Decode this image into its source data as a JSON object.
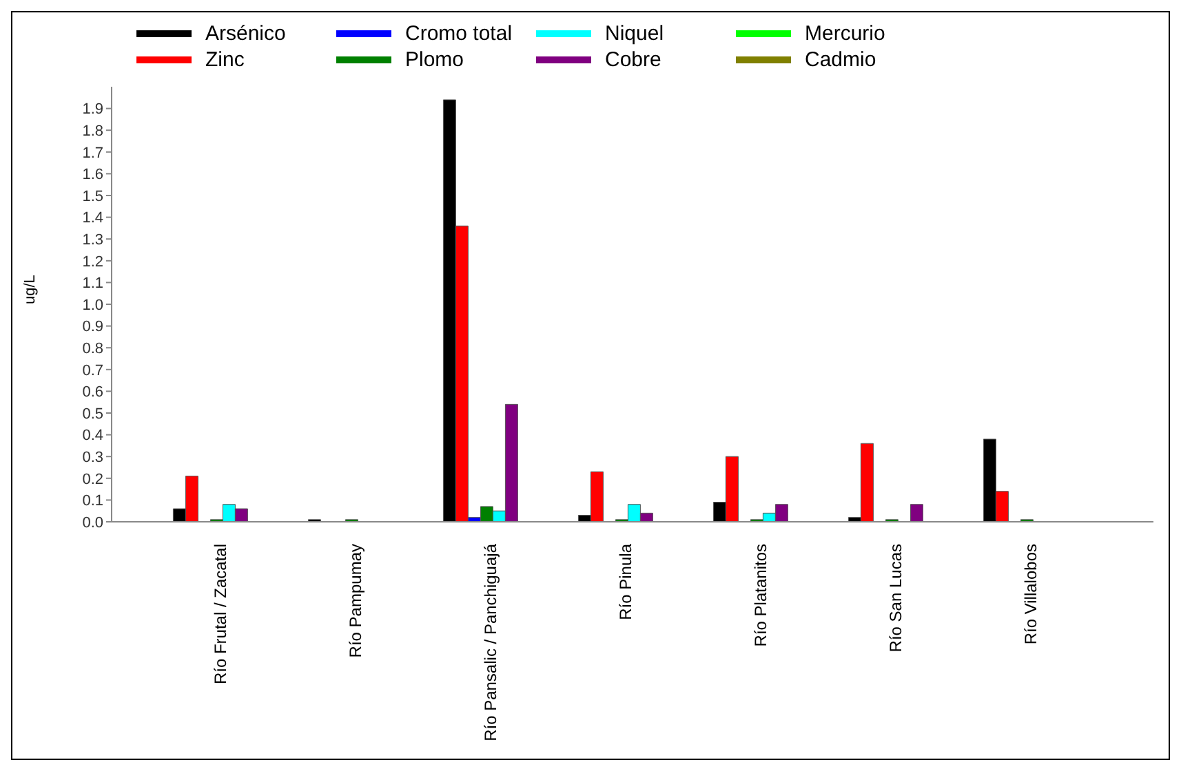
{
  "chart_data": {
    "type": "bar",
    "ylabel": "ug/L",
    "categories": [
      "Río Frutal / Zacatal",
      "Río Pampumay",
      "Río Pansalic / Panchiguajá",
      "Río Pinula",
      "Río Platanitos",
      "Río San Lucas",
      "Río Villalobos"
    ],
    "series": [
      {
        "name": "Arsénico",
        "color": "#000000",
        "values": [
          0.06,
          0.01,
          1.94,
          0.03,
          0.09,
          0.02,
          0.38
        ]
      },
      {
        "name": "Zinc",
        "color": "#ff0000",
        "values": [
          0.21,
          0,
          1.36,
          0.23,
          0.3,
          0.36,
          0.14
        ]
      },
      {
        "name": "Cromo total",
        "color": "#0000ff",
        "values": [
          0,
          0,
          0.02,
          0,
          0,
          0,
          0
        ]
      },
      {
        "name": "Plomo",
        "color": "#008000",
        "values": [
          0.01,
          0.01,
          0.07,
          0.01,
          0.01,
          0.01,
          0.01
        ]
      },
      {
        "name": "Niquel",
        "color": "#00ffff",
        "values": [
          0.08,
          0,
          0.05,
          0.08,
          0.04,
          0,
          0
        ]
      },
      {
        "name": "Cobre",
        "color": "#800080",
        "values": [
          0.06,
          0,
          0.54,
          0.04,
          0.08,
          0.08,
          0
        ]
      },
      {
        "name": "Mercurio",
        "color": "#00ff00",
        "values": [
          0,
          0,
          0,
          0,
          0,
          0,
          0
        ]
      },
      {
        "name": "Cadmio",
        "color": "#808000",
        "values": [
          0,
          0,
          0,
          0,
          0,
          0,
          0
        ]
      }
    ],
    "ylim": [
      0,
      2.0
    ],
    "yticks": [
      {
        "value": 0,
        "label": "0.0"
      },
      0.1,
      0.2,
      0.3,
      0.4,
      0.5,
      0.6,
      0.7,
      0.8,
      0.9,
      {
        "value": 1,
        "label": "1.0"
      },
      1.1,
      1.2,
      1.3,
      1.4,
      1.5,
      1.6,
      1.7,
      1.8,
      1.9
    ],
    "grid": false,
    "legend": "top"
  }
}
